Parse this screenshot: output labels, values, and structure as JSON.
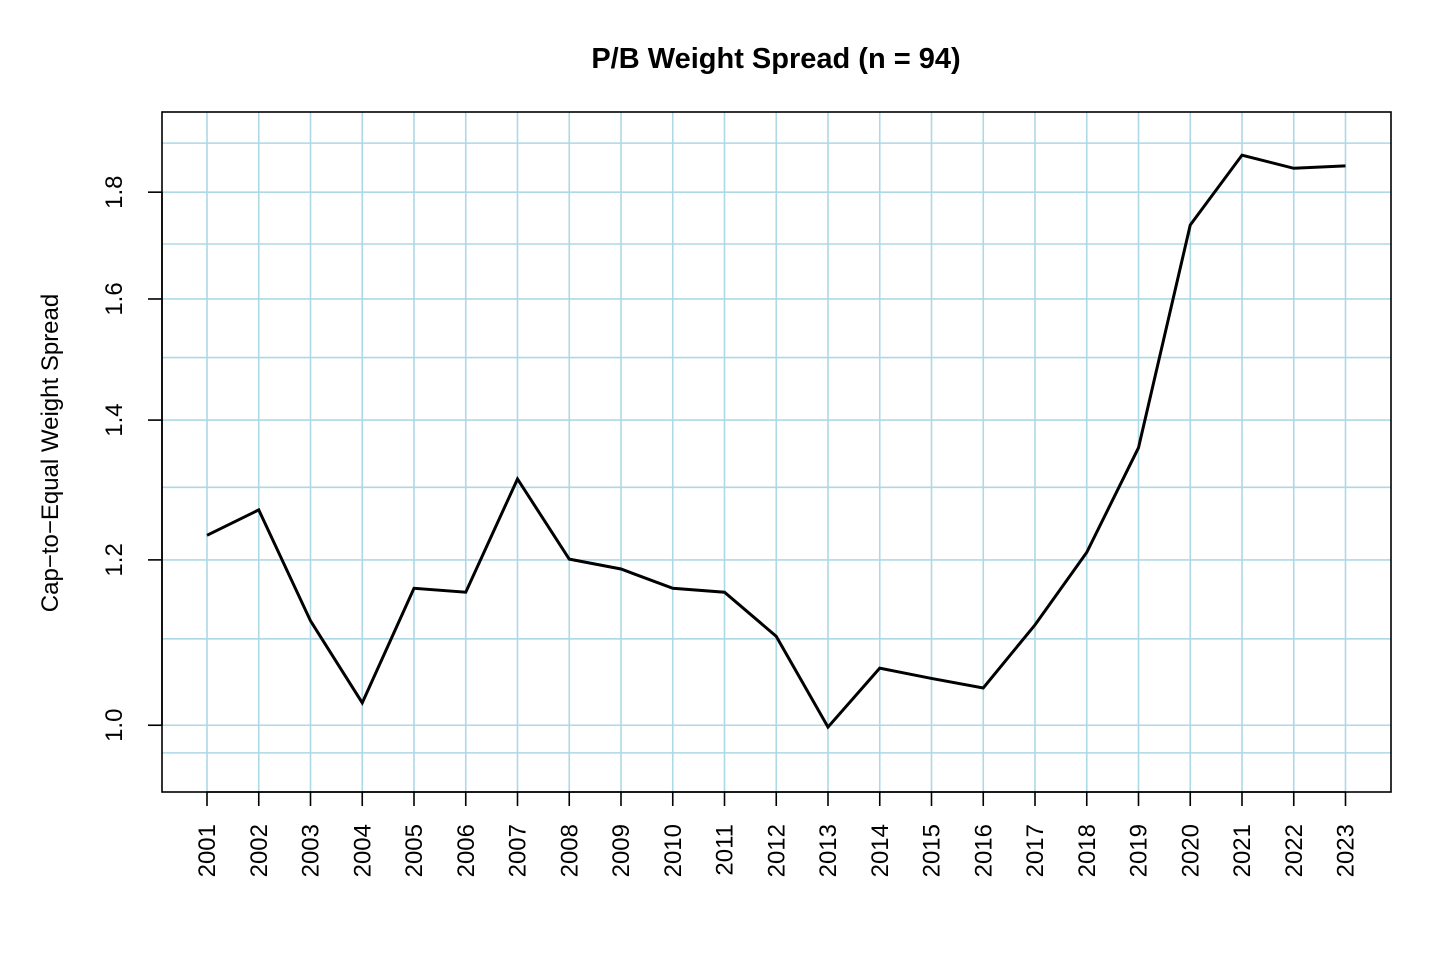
{
  "chart_data": {
    "type": "line",
    "title": "P/B Weight Spread (n = 94)",
    "xlabel": "",
    "ylabel": "Cap−to−Equal Weight Spread",
    "x": [
      "2001",
      "2002",
      "2003",
      "2004",
      "2005",
      "2006",
      "2007",
      "2008",
      "2009",
      "2010",
      "2011",
      "2012",
      "2013",
      "2014",
      "2015",
      "2016",
      "2017",
      "2018",
      "2019",
      "2020",
      "2021",
      "2022",
      "2023"
    ],
    "series": [
      {
        "values": [
          1.233,
          1.268,
          1.122,
          1.025,
          1.163,
          1.158,
          1.312,
          1.201,
          1.188,
          1.163,
          1.158,
          1.103,
          0.998,
          1.065,
          1.053,
          1.042,
          1.117,
          1.21,
          1.358,
          1.736,
          1.875,
          1.848,
          1.853
        ],
        "color": "#000000"
      }
    ],
    "yticks": [
      "1.0",
      "1.2",
      "1.4",
      "1.6",
      "1.8"
    ],
    "ytick_values": [
      1.0,
      1.2,
      1.4,
      1.6,
      1.8
    ],
    "ylim": [
      0.955,
      1.915
    ],
    "log_scale_y": true,
    "grid": true,
    "grid_color": "#add8e6",
    "legend": "none"
  }
}
